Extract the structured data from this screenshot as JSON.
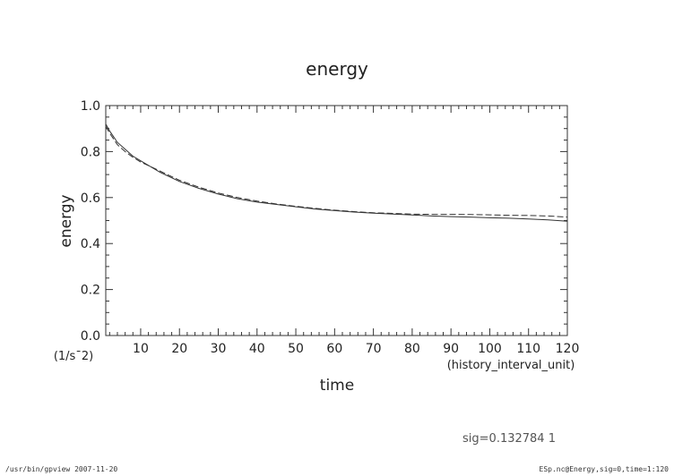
{
  "chart_data": {
    "type": "line",
    "title": "energy",
    "xlabel": "time",
    "ylabel": "energy",
    "xunit": "(history_interval_unit)",
    "yunit": "(1/s¯2)",
    "xlim": [
      1,
      120
    ],
    "ylim": [
      0.0,
      1.0
    ],
    "xticks": [
      10,
      20,
      30,
      40,
      50,
      60,
      70,
      80,
      90,
      100,
      110,
      120
    ],
    "yticks": [
      "0.0",
      "0.2",
      "0.4",
      "0.6",
      "0.8",
      "1.0"
    ],
    "grid": false,
    "series": [
      {
        "style": "solid",
        "x": [
          1,
          2,
          4,
          6,
          8,
          10,
          15,
          20,
          25,
          30,
          35,
          40,
          45,
          50,
          55,
          60,
          65,
          70,
          75,
          80,
          85,
          90,
          95,
          100,
          105,
          110,
          115,
          120
        ],
        "y": [
          0.92,
          0.89,
          0.84,
          0.81,
          0.78,
          0.76,
          0.71,
          0.67,
          0.64,
          0.615,
          0.595,
          0.58,
          0.57,
          0.56,
          0.55,
          0.543,
          0.537,
          0.532,
          0.528,
          0.524,
          0.52,
          0.517,
          0.515,
          0.512,
          0.51,
          0.507,
          0.503,
          0.497
        ]
      },
      {
        "style": "dashed",
        "x": [
          1,
          2,
          4,
          6,
          8,
          10,
          15,
          20,
          25,
          30,
          35,
          40,
          45,
          50,
          55,
          60,
          65,
          70,
          75,
          80,
          85,
          90,
          95,
          100,
          105,
          110,
          115,
          120
        ],
        "y": [
          0.91,
          0.88,
          0.83,
          0.8,
          0.775,
          0.755,
          0.715,
          0.675,
          0.645,
          0.62,
          0.6,
          0.585,
          0.572,
          0.562,
          0.553,
          0.545,
          0.539,
          0.534,
          0.531,
          0.528,
          0.527,
          0.527,
          0.526,
          0.525,
          0.523,
          0.522,
          0.52,
          0.515
        ]
      }
    ]
  },
  "annotation": "sig=0.132784  1",
  "footer_left": "/usr/bin/gpview   2007-11-20",
  "footer_right": "ESp.nc@Energy,sig=0,time=1:120"
}
